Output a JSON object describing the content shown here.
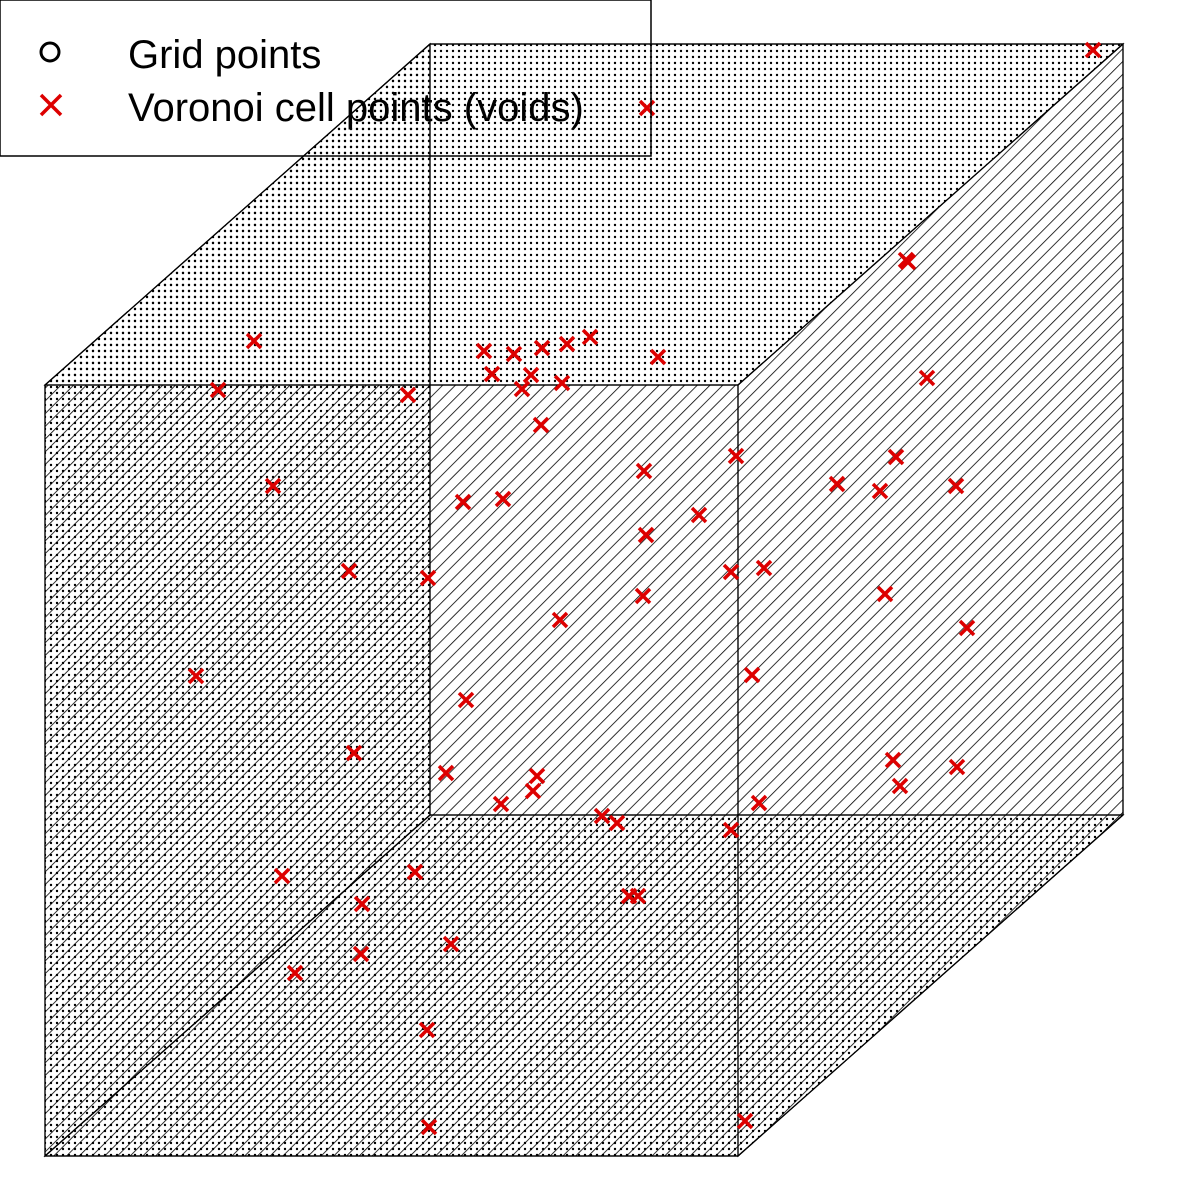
{
  "chart_data": {
    "type": "scatter",
    "title": "",
    "xlabel": "",
    "ylabel": "",
    "grid": false,
    "legend_position": "top-left",
    "background": "#ffffff",
    "series": [
      {
        "name": "Grid points",
        "marker": "circle-open",
        "color": "#000000",
        "description_note": "dense regular grid rendered as fine dot pattern on cube faces"
      },
      {
        "name": "Voronoi cell points (voids)",
        "marker": "x",
        "color": "#dd0000",
        "points": [
          [
            1093,
            50
          ],
          [
            647,
            108
          ],
          [
            906,
            260
          ],
          [
            908,
            262
          ],
          [
            254,
            341
          ],
          [
            484,
            351
          ],
          [
            514,
            354
          ],
          [
            542,
            348
          ],
          [
            567,
            344
          ],
          [
            590,
            337
          ],
          [
            658,
            357
          ],
          [
            492,
            374
          ],
          [
            531,
            375
          ],
          [
            522,
            389
          ],
          [
            562,
            383
          ],
          [
            927,
            378
          ],
          [
            218,
            390
          ],
          [
            408,
            395
          ],
          [
            541,
            425
          ],
          [
            736,
            456
          ],
          [
            896,
            457
          ],
          [
            644,
            471
          ],
          [
            837,
            484
          ],
          [
            880,
            491
          ],
          [
            956,
            486
          ],
          [
            273,
            486
          ],
          [
            463,
            502
          ],
          [
            503,
            499
          ],
          [
            699,
            515
          ],
          [
            646,
            535
          ],
          [
            349,
            571
          ],
          [
            428,
            578
          ],
          [
            731,
            572
          ],
          [
            764,
            568
          ],
          [
            643,
            596
          ],
          [
            885,
            594
          ],
          [
            560,
            620
          ],
          [
            967,
            628
          ],
          [
            752,
            675
          ],
          [
            196,
            676
          ],
          [
            466,
            700
          ],
          [
            354,
            753
          ],
          [
            893,
            760
          ],
          [
            957,
            767
          ],
          [
            446,
            773
          ],
          [
            537,
            776
          ],
          [
            533,
            791
          ],
          [
            900,
            786
          ],
          [
            501,
            804
          ],
          [
            759,
            803
          ],
          [
            602,
            816
          ],
          [
            617,
            823
          ],
          [
            731,
            830
          ],
          [
            415,
            872
          ],
          [
            282,
            876
          ],
          [
            629,
            896
          ],
          [
            638,
            896
          ],
          [
            362,
            904
          ],
          [
            451,
            944
          ],
          [
            361,
            954
          ],
          [
            295,
            973
          ],
          [
            427,
            1030
          ],
          [
            745,
            1121
          ],
          [
            429,
            1127
          ]
        ]
      }
    ],
    "cube": {
      "front": [
        [
          45,
          385
        ],
        [
          738,
          385
        ],
        [
          738,
          1156
        ],
        [
          45,
          1156
        ]
      ],
      "back": [
        [
          430,
          44
        ],
        [
          1123,
          44
        ],
        [
          1123,
          815
        ],
        [
          430,
          815
        ]
      ]
    }
  }
}
